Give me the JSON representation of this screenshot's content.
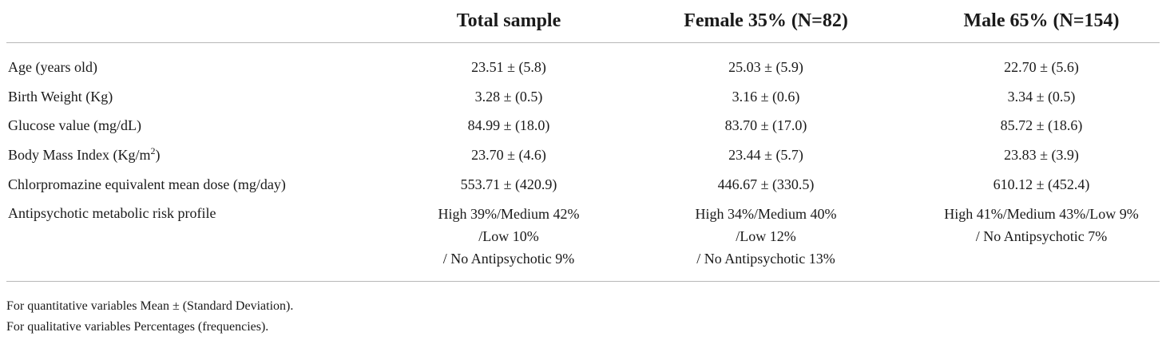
{
  "table": {
    "headers": [
      "",
      "Total sample",
      "Female 35% (N=82)",
      "Male 65% (N=154)"
    ],
    "rows": [
      {
        "label": "Age (years old)",
        "label_sup": "",
        "label_after": "",
        "total": [
          "23.51 ± (5.8)"
        ],
        "female": [
          "25.03 ± (5.9)"
        ],
        "male": [
          "22.70 ± (5.6)"
        ]
      },
      {
        "label": "Birth Weight (Kg)",
        "label_sup": "",
        "label_after": "",
        "total": [
          "3.28 ± (0.5)"
        ],
        "female": [
          "3.16 ± (0.6)"
        ],
        "male": [
          "3.34 ± (0.5)"
        ]
      },
      {
        "label": "Glucose value (mg/dL)",
        "label_sup": "",
        "label_after": "",
        "total": [
          "84.99 ± (18.0)"
        ],
        "female": [
          "83.70 ± (17.0)"
        ],
        "male": [
          "85.72 ± (18.6)"
        ]
      },
      {
        "label": "Body Mass Index (Kg/m",
        "label_sup": "2",
        "label_after": ")",
        "total": [
          "23.70 ± (4.6)"
        ],
        "female": [
          "23.44 ± (5.7)"
        ],
        "male": [
          "23.83 ± (3.9)"
        ]
      },
      {
        "label": "Chlorpromazine equivalent mean dose (mg/day)",
        "label_sup": "",
        "label_after": "",
        "total": [
          "553.71 ± (420.9)"
        ],
        "female": [
          "446.67 ± (330.5)"
        ],
        "male": [
          "610.12 ± (452.4)"
        ]
      },
      {
        "label": "Antipsychotic metabolic risk profile",
        "label_sup": "",
        "label_after": "",
        "total": [
          "High 39%/Medium 42%",
          "/Low 10%",
          "/ No Antipsychotic 9%"
        ],
        "female": [
          "High 34%/Medium 40%",
          "/Low 12%",
          "/ No Antipsychotic 13%"
        ],
        "male": [
          "High 41%/Medium 43%/Low 9%",
          "/ No Antipsychotic 7%"
        ]
      }
    ]
  },
  "footnotes": [
    "For quantitative variables Mean ± (Standard Deviation).",
    "For qualitative variables Percentages (frequencies)."
  ]
}
